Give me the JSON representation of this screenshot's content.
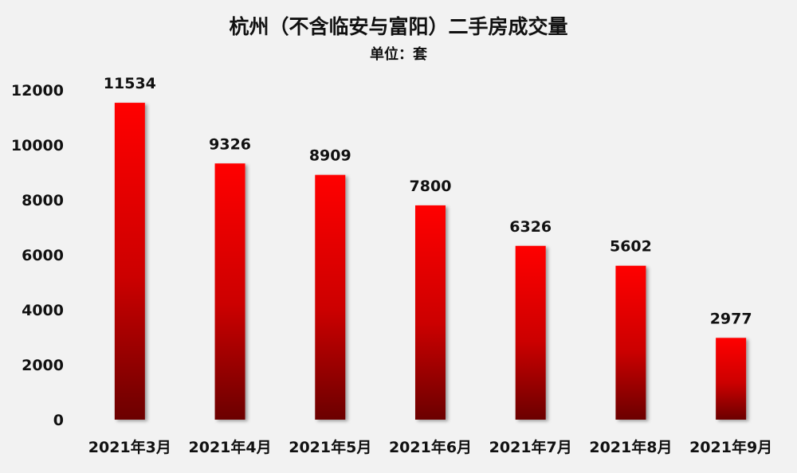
{
  "chart_data": {
    "type": "bar",
    "title": "杭州（不含临安与富阳）二手房成交量",
    "subtitle": "单位：套",
    "categories": [
      "2021年3月",
      "2021年4月",
      "2021年5月",
      "2021年6月",
      "2021年7月",
      "2021年8月",
      "2021年9月"
    ],
    "values": [
      11534,
      9326,
      8909,
      7800,
      6326,
      5602,
      2977
    ],
    "data_labels": [
      "11534",
      "9326",
      "8909",
      "7800",
      "6326",
      "5602",
      "2977"
    ],
    "yticks": [
      0,
      2000,
      4000,
      6000,
      8000,
      10000,
      12000
    ],
    "ylim": [
      0,
      12000
    ],
    "grid": false,
    "legend": "none",
    "bar_gradient_top": "#ff0000",
    "bar_gradient_bottom": "#6b0000",
    "background": "#f2f2f2"
  }
}
